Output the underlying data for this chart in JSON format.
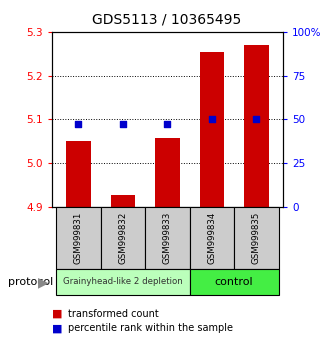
{
  "title": "GDS5113 / 10365495",
  "samples": [
    "GSM999831",
    "GSM999832",
    "GSM999833",
    "GSM999834",
    "GSM999835"
  ],
  "bar_values": [
    5.052,
    4.928,
    5.057,
    5.255,
    5.27
  ],
  "percentile_values": [
    5.089,
    5.089,
    5.089,
    5.1,
    5.101
  ],
  "ylim_left": [
    4.9,
    5.3
  ],
  "ylim_right": [
    0,
    100
  ],
  "yticks_left": [
    4.9,
    5.0,
    5.1,
    5.2,
    5.3
  ],
  "yticks_right": [
    0,
    25,
    50,
    75,
    100
  ],
  "bar_color": "#cc0000",
  "percentile_color": "#0000cc",
  "bar_baseline": 4.9,
  "group1_label": "Grainyhead-like 2 depletion",
  "group2_label": "control",
  "group1_color": "#bbffbb",
  "group2_color": "#44ee44",
  "sample_box_color": "#cccccc",
  "legend_bar_label": "transformed count",
  "legend_pct_label": "percentile rank within the sample",
  "bar_width": 0.55,
  "gridlines": [
    5.0,
    5.1,
    5.2
  ]
}
